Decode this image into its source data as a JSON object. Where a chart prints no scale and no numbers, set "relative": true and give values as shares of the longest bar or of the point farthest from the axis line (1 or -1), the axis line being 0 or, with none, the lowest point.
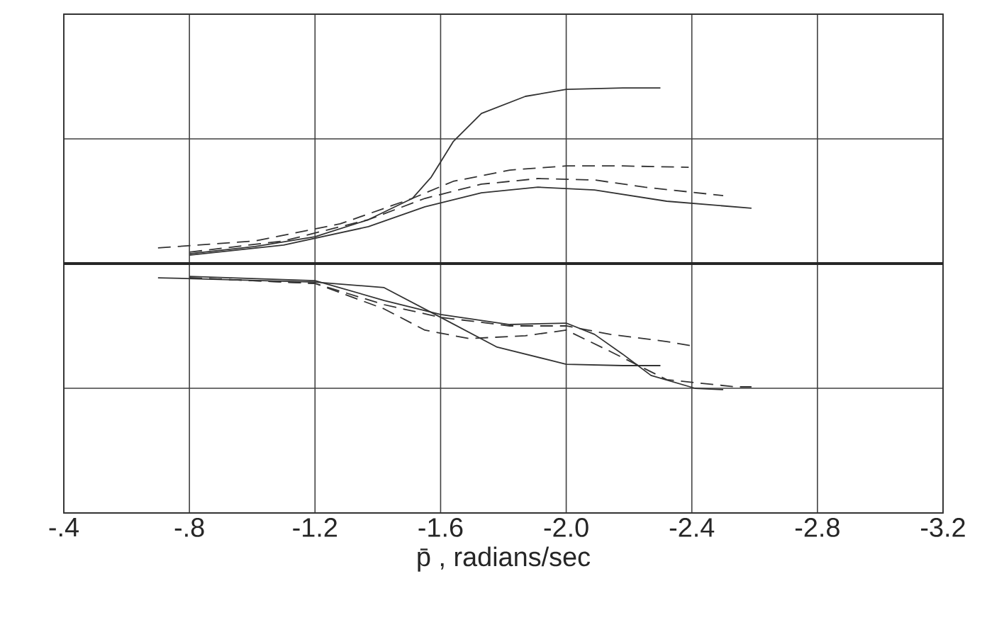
{
  "chart_data": {
    "type": "line",
    "relative": true,
    "xlabel": "p̄ , radians/sec",
    "xlim": [
      -0.4,
      -3.2
    ],
    "xticks": [
      {
        "value": -0.4,
        "label": "-.4"
      },
      {
        "value": -0.8,
        "label": "-.8"
      },
      -1.2,
      -1.6,
      {
        "value": -2.0,
        "label": "-2.0"
      },
      -2.4,
      -2.8,
      -3.2
    ],
    "tick_labels": "x",
    "grid": true,
    "marker": "none",
    "series": [
      {
        "color": "#333333",
        "line_style": "solid",
        "x": [
          -0.8,
          -1.01,
          -1.2,
          -1.37,
          -1.51,
          -1.57,
          -1.64,
          -1.73,
          -1.87,
          -2.0,
          -2.18,
          -2.3
        ],
        "values": [
          0.056,
          0.097,
          0.153,
          0.25,
          0.371,
          0.492,
          0.694,
          0.855,
          0.952,
          0.992,
          1.0,
          1.0
        ]
      },
      {
        "color": "#333333",
        "line_style": "dashed",
        "x": [
          -0.7,
          -1.01,
          -1.28,
          -1.51,
          -1.64,
          -1.82,
          -2.0,
          -2.18,
          -2.39
        ],
        "values": [
          0.089,
          0.129,
          0.226,
          0.371,
          0.468,
          0.532,
          0.556,
          0.556,
          0.548
        ]
      },
      {
        "color": "#333333",
        "line_style": "dashed",
        "x": [
          -0.8,
          -1.1,
          -1.37,
          -1.55,
          -1.73,
          -1.91,
          -2.09,
          -2.25,
          -2.5
        ],
        "values": [
          0.065,
          0.129,
          0.25,
          0.371,
          0.452,
          0.484,
          0.476,
          0.435,
          0.387
        ]
      },
      {
        "color": "#333333",
        "line_style": "solid",
        "x": [
          -0.8,
          -1.1,
          -1.37,
          -1.55,
          -1.73,
          -1.91,
          -2.09,
          -2.32,
          -2.59
        ],
        "values": [
          0.048,
          0.105,
          0.21,
          0.323,
          0.403,
          0.435,
          0.419,
          0.355,
          0.315
        ]
      },
      {
        "color": "#333333",
        "line_style": "solid",
        "x": [
          -0.7,
          -1.2,
          -1.42,
          -1.6,
          -1.78,
          -2.0,
          -2.18,
          -2.3
        ],
        "values": [
          -0.081,
          -0.105,
          -0.137,
          -0.306,
          -0.476,
          -0.573,
          -0.581,
          -0.581
        ]
      },
      {
        "color": "#333333",
        "line_style": "solid",
        "x": [
          -0.8,
          -1.2,
          -1.42,
          -1.6,
          -1.82,
          -2.0,
          -2.09,
          -2.18,
          -2.27,
          -2.41,
          -2.5
        ],
        "values": [
          -0.073,
          -0.097,
          -0.21,
          -0.29,
          -0.347,
          -0.339,
          -0.403,
          -0.516,
          -0.637,
          -0.71,
          -0.718
        ]
      },
      {
        "color": "#333333",
        "line_style": "dashed",
        "x": [
          -0.8,
          -1.2,
          -1.42,
          -1.6,
          -1.82,
          -2.0,
          -2.14,
          -2.32,
          -2.4
        ],
        "values": [
          -0.081,
          -0.113,
          -0.234,
          -0.306,
          -0.355,
          -0.355,
          -0.403,
          -0.444,
          -0.468
        ]
      },
      {
        "color": "#333333",
        "line_style": "dashed",
        "x": [
          -0.8,
          -1.2,
          -1.42,
          -1.55,
          -1.69,
          -1.87,
          -2.0,
          -2.14,
          -2.32,
          -2.54,
          -2.59
        ],
        "values": [
          -0.081,
          -0.113,
          -0.258,
          -0.379,
          -0.427,
          -0.411,
          -0.379,
          -0.5,
          -0.661,
          -0.702,
          -0.702
        ]
      }
    ]
  }
}
